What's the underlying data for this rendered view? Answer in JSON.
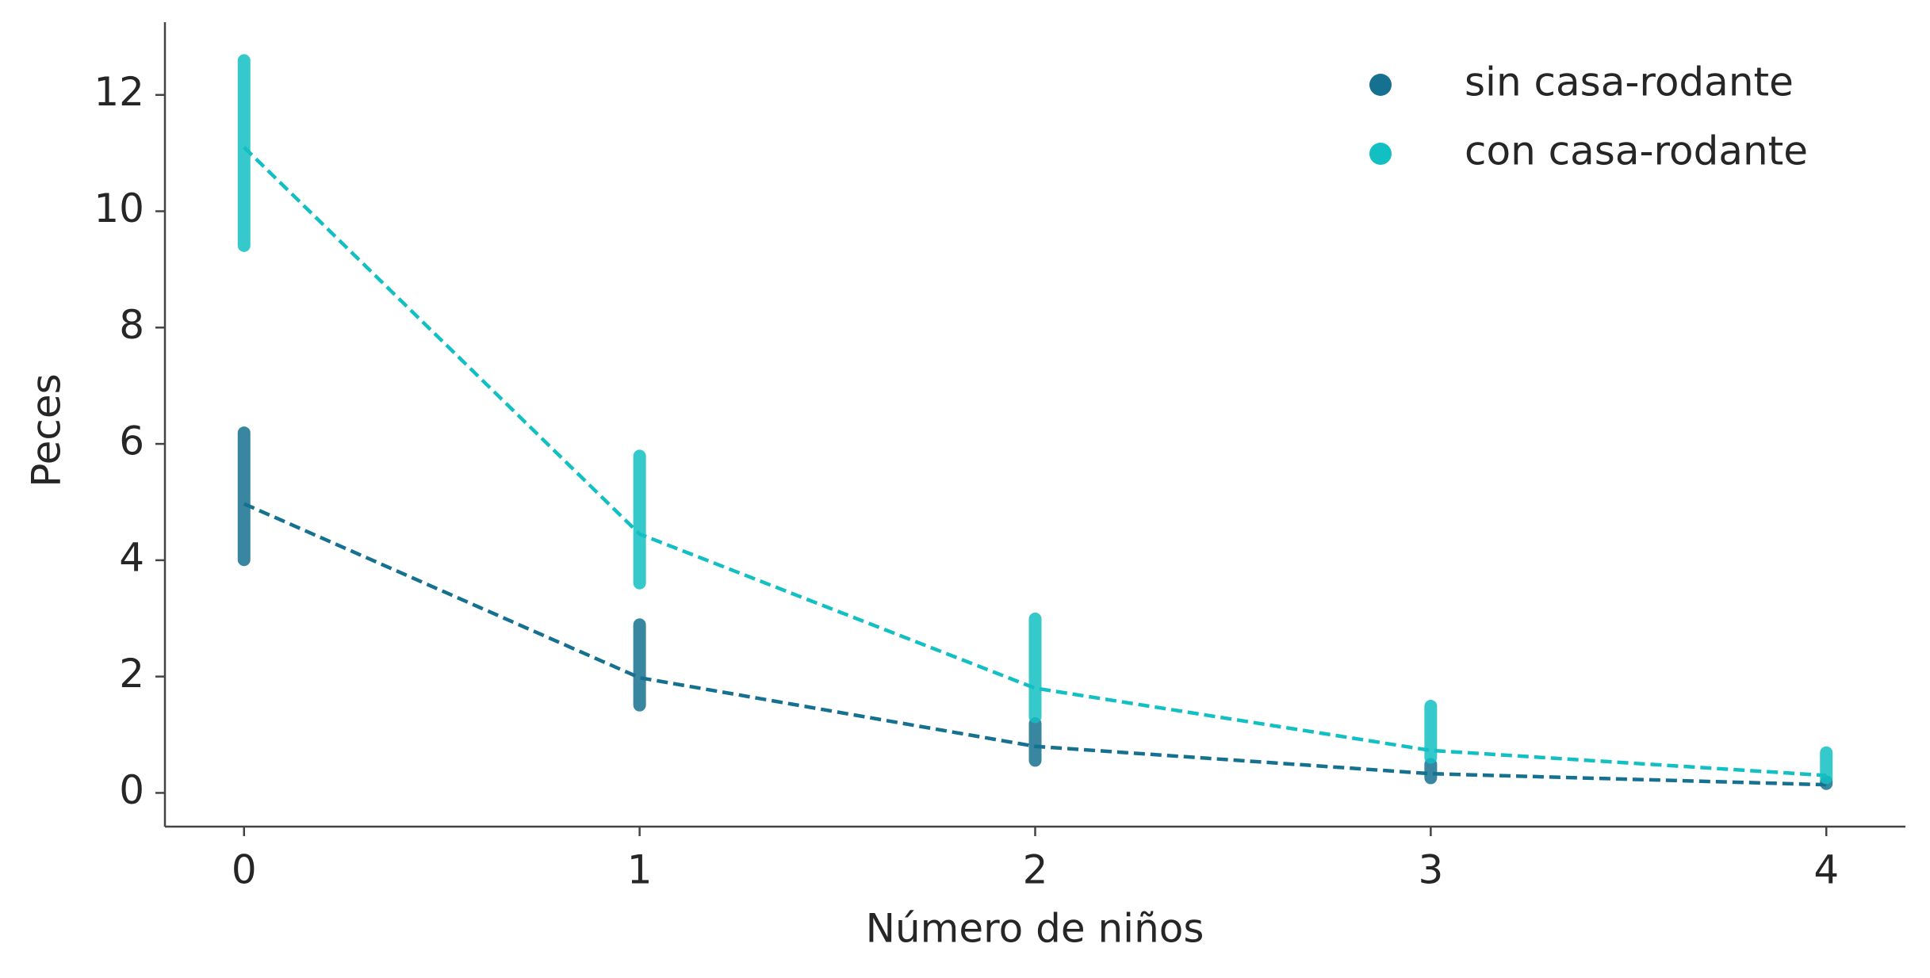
{
  "chart_data": {
    "type": "line",
    "x_label": "Número de niños",
    "y_label": "Peces",
    "x": [
      0,
      1,
      2,
      3,
      4
    ],
    "series": [
      {
        "name": "sin casa-rodante",
        "color": "#15718f",
        "values": [
          4.97,
          1.98,
          0.8,
          0.33,
          0.14
        ],
        "sample_range": [
          [
            3.9,
            6.3
          ],
          [
            1.4,
            3.0
          ],
          [
            0.45,
            1.3
          ],
          [
            0.15,
            0.6
          ],
          [
            0.05,
            0.3
          ]
        ]
      },
      {
        "name": "con casa-rodante",
        "color": "#12bfc2",
        "values": [
          11.1,
          4.45,
          1.8,
          0.73,
          0.3
        ],
        "sample_range": [
          [
            9.3,
            12.7
          ],
          [
            3.5,
            5.9
          ],
          [
            1.2,
            3.1
          ],
          [
            0.5,
            1.6
          ],
          [
            0.15,
            0.8
          ]
        ]
      }
    ],
    "xlim": [
      -0.2,
      4.2
    ],
    "xticks": [
      0,
      1,
      2,
      3,
      4
    ],
    "ylim": [
      -0.58,
      13.25
    ],
    "yticks": [
      0,
      2,
      4,
      6,
      8,
      10,
      12
    ],
    "legend": "upper right",
    "line_style": "dashed"
  }
}
